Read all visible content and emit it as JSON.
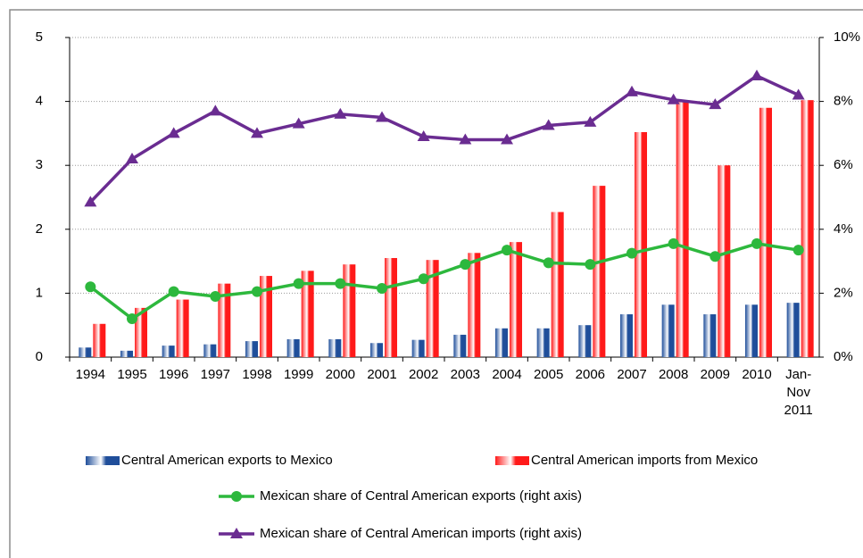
{
  "chart_data": {
    "type": "bar",
    "categories": [
      "1994",
      "1995",
      "1996",
      "1997",
      "1998",
      "1999",
      "2000",
      "2001",
      "2002",
      "2003",
      "2004",
      "2005",
      "2006",
      "2007",
      "2008",
      "2009",
      "2010",
      "Jan-Nov 2011"
    ],
    "series": [
      {
        "name": "Central American exports to Mexico",
        "type": "bar",
        "color": "#1f4e9a",
        "values": [
          0.15,
          0.1,
          0.18,
          0.2,
          0.25,
          0.28,
          0.28,
          0.22,
          0.27,
          0.35,
          0.45,
          0.45,
          0.5,
          0.67,
          0.82,
          0.67,
          0.82,
          0.85
        ]
      },
      {
        "name": "Central American imports from Mexico",
        "type": "bar",
        "color": "#ff1a1a",
        "values": [
          0.52,
          0.77,
          0.9,
          1.15,
          1.27,
          1.35,
          1.45,
          1.55,
          1.52,
          1.63,
          1.8,
          2.27,
          2.68,
          3.52,
          4.0,
          3.0,
          3.9,
          4.02
        ]
      },
      {
        "name": "Mexican share of Central American exports (right axis)",
        "type": "line",
        "axis": "y2",
        "marker": "circle",
        "color": "#2db83d",
        "values": [
          2.2,
          1.2,
          2.05,
          1.9,
          2.05,
          2.3,
          2.3,
          2.15,
          2.45,
          2.9,
          3.35,
          2.95,
          2.9,
          3.25,
          3.55,
          3.15,
          3.55,
          3.35
        ]
      },
      {
        "name": "Mexican share of Central American imports (right axis)",
        "type": "line",
        "axis": "y2",
        "marker": "triangle",
        "color": "#6a2c91",
        "values": [
          4.85,
          6.2,
          7.0,
          7.7,
          7.0,
          7.3,
          7.6,
          7.5,
          6.9,
          6.8,
          6.8,
          7.25,
          7.35,
          8.3,
          8.05,
          7.9,
          8.8,
          8.2
        ]
      }
    ],
    "ylim": [
      0,
      5
    ],
    "yticks": [
      0,
      1,
      2,
      3,
      4,
      5
    ],
    "y2lim": [
      0,
      10
    ],
    "y2ticks": [
      {
        "value": 0,
        "label": "0%"
      },
      {
        "value": 2,
        "label": "2%"
      },
      {
        "value": 4,
        "label": "4%"
      },
      {
        "value": 6,
        "label": "6%"
      },
      {
        "value": 8,
        "label": "8%"
      },
      {
        "value": 10,
        "label": "10%"
      }
    ],
    "grid": true,
    "legend": "bottom"
  }
}
